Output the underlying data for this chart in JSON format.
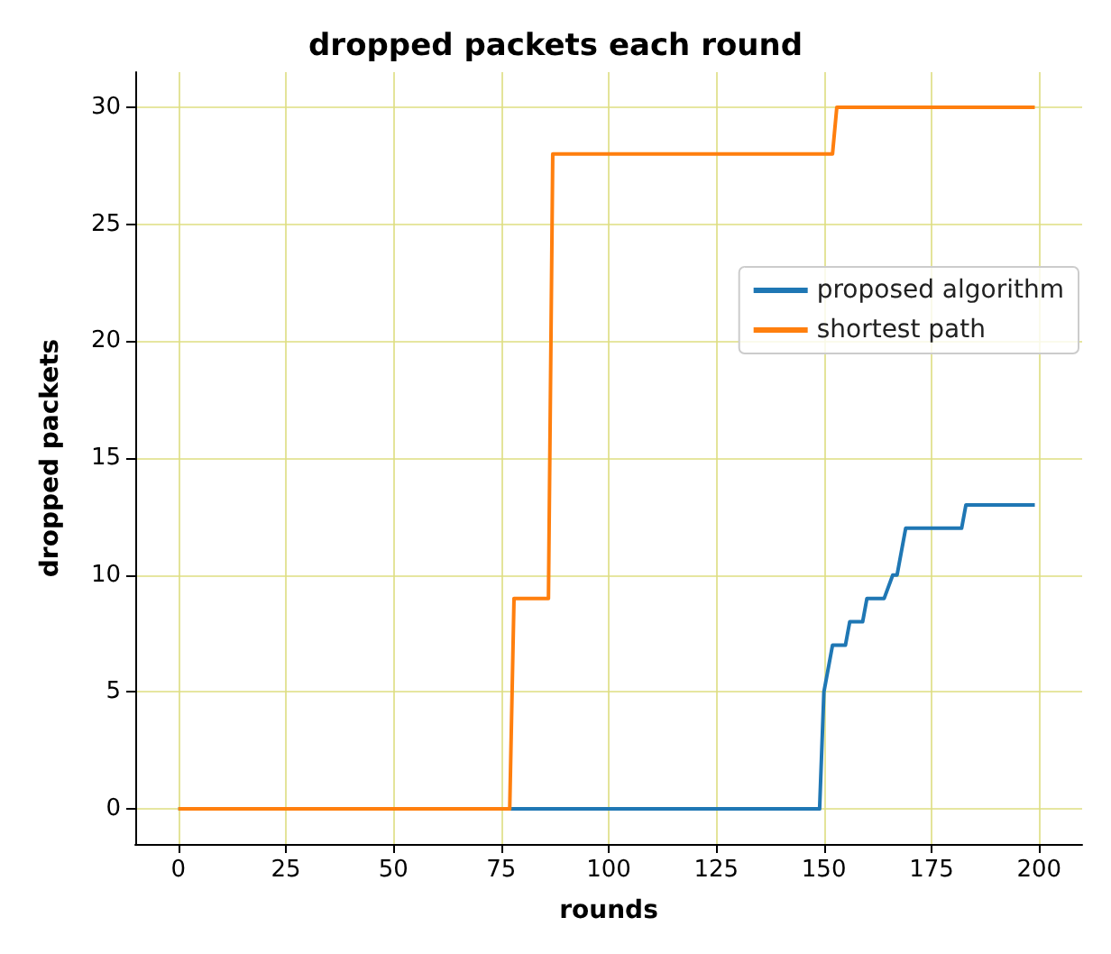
{
  "chart_data": {
    "type": "line",
    "title": "dropped packets each round",
    "xlabel": "rounds",
    "ylabel": "dropped packets",
    "series": [
      {
        "name": "proposed algorithm",
        "color": "#1f77b4",
        "x": [
          0,
          149,
          150,
          152,
          155,
          156,
          159,
          160,
          164,
          166,
          167,
          169,
          182,
          183,
          199
        ],
        "values": [
          0,
          0,
          5,
          7,
          7,
          8,
          8,
          9,
          9,
          10,
          10,
          12,
          12,
          13,
          13
        ]
      },
      {
        "name": "shortest path",
        "color": "#ff7f0e",
        "x": [
          0,
          77,
          78,
          86,
          87,
          152,
          153,
          199
        ],
        "values": [
          0,
          0,
          9,
          9,
          28,
          28,
          30,
          30
        ]
      }
    ],
    "xlim": [
      -10,
      210
    ],
    "ylim": [
      -1.5,
      31.5
    ],
    "xticks": [
      0,
      25,
      50,
      75,
      100,
      125,
      150,
      175,
      200
    ],
    "yticks": [
      0,
      5,
      10,
      15,
      20,
      25,
      30
    ],
    "grid": true,
    "legend": "right"
  }
}
